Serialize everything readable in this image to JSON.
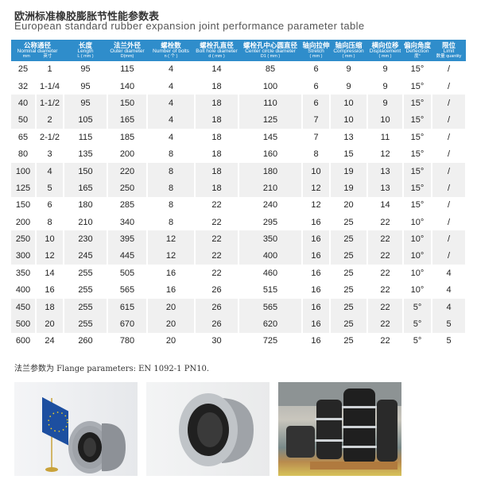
{
  "title_cn": "欧洲标准橡胶膨胀节性能参数表",
  "title_en": "European standard rubber expansion joint performance parameter table",
  "header_color": "#2f8dcb",
  "columns": [
    {
      "cn": "公称通径",
      "en": "Nominal diameter",
      "u": "mm　　　英寸",
      "span": 2
    },
    {
      "cn": "长度",
      "en": "Length",
      "u": "L ( mm )"
    },
    {
      "cn": "法兰外径",
      "en": "Outer diameter",
      "u": "D(mm)"
    },
    {
      "cn": "螺栓数",
      "en": "Number of bolts",
      "u": "n ( 个 )"
    },
    {
      "cn": "螺栓孔直径",
      "en": "Bolt hole diameter",
      "u": "d ( mm )"
    },
    {
      "cn": "螺栓孔中心圆直径",
      "en": "Center circle diameter",
      "u": "D1 ( mm )"
    },
    {
      "cn": "轴向拉伸",
      "en": "Stretch",
      "u": "( mm )"
    },
    {
      "cn": "轴向压缩",
      "en": "Compression",
      "u": "( mm )"
    },
    {
      "cn": "横向位移",
      "en": "Displacement",
      "u": "( mm )"
    },
    {
      "cn": "偏向角度",
      "en": "Deflection",
      "u": "度°"
    },
    {
      "cn": "限位",
      "en": "Limit",
      "u": "数量 quantity"
    }
  ],
  "rows": [
    [
      "25",
      "1",
      "95",
      "115",
      "4",
      "14",
      "85",
      "6",
      "9",
      "9",
      "15°",
      "/"
    ],
    [
      "32",
      "1-1/4",
      "95",
      "140",
      "4",
      "18",
      "100",
      "6",
      "9",
      "9",
      "15°",
      "/"
    ],
    [
      "40",
      "1-1/2",
      "95",
      "150",
      "4",
      "18",
      "110",
      "6",
      "10",
      "9",
      "15°",
      "/"
    ],
    [
      "50",
      "2",
      "105",
      "165",
      "4",
      "18",
      "125",
      "7",
      "10",
      "10",
      "15°",
      "/"
    ],
    [
      "65",
      "2-1/2",
      "115",
      "185",
      "4",
      "18",
      "145",
      "7",
      "13",
      "11",
      "15°",
      "/"
    ],
    [
      "80",
      "3",
      "135",
      "200",
      "8",
      "18",
      "160",
      "8",
      "15",
      "12",
      "15°",
      "/"
    ],
    [
      "100",
      "4",
      "150",
      "220",
      "8",
      "18",
      "180",
      "10",
      "19",
      "13",
      "15°",
      "/"
    ],
    [
      "125",
      "5",
      "165",
      "250",
      "8",
      "18",
      "210",
      "12",
      "19",
      "13",
      "15°",
      "/"
    ],
    [
      "150",
      "6",
      "180",
      "285",
      "8",
      "22",
      "240",
      "12",
      "20",
      "14",
      "15°",
      "/"
    ],
    [
      "200",
      "8",
      "210",
      "340",
      "8",
      "22",
      "295",
      "16",
      "25",
      "22",
      "10°",
      "/"
    ],
    [
      "250",
      "10",
      "230",
      "395",
      "12",
      "22",
      "350",
      "16",
      "25",
      "22",
      "10°",
      "/"
    ],
    [
      "300",
      "12",
      "245",
      "445",
      "12",
      "22",
      "400",
      "16",
      "25",
      "22",
      "10°",
      "/"
    ],
    [
      "350",
      "14",
      "255",
      "505",
      "16",
      "22",
      "460",
      "16",
      "25",
      "22",
      "10°",
      "4"
    ],
    [
      "400",
      "16",
      "255",
      "565",
      "16",
      "26",
      "515",
      "16",
      "25",
      "22",
      "10°",
      "4"
    ],
    [
      "450",
      "18",
      "255",
      "615",
      "20",
      "26",
      "565",
      "16",
      "25",
      "22",
      "5°",
      "4"
    ],
    [
      "500",
      "20",
      "255",
      "670",
      "20",
      "26",
      "620",
      "16",
      "25",
      "22",
      "5°",
      "5"
    ],
    [
      "600",
      "24",
      "260",
      "780",
      "20",
      "30",
      "725",
      "16",
      "25",
      "22",
      "5°",
      "5"
    ]
  ],
  "note": "法兰参数为 Flange parameters: EN 1092-1 PN10."
}
